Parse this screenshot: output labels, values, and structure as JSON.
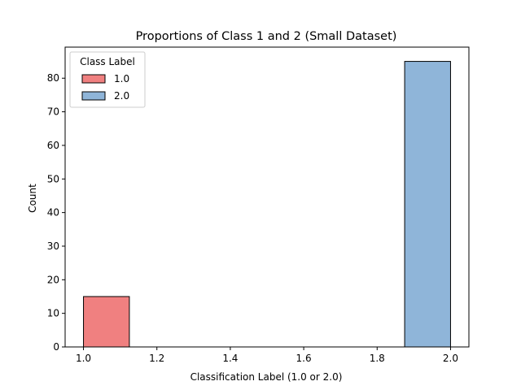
{
  "chart_data": {
    "type": "bar",
    "title": "Proportions of Class 1 and 2 (Small Dataset)",
    "xlabel": "Classification Label (1.0 or 2.0)",
    "ylabel": "Count",
    "xlim": [
      0.95,
      2.05
    ],
    "ylim": [
      0,
      89.25
    ],
    "xticks": [
      1.0,
      1.2,
      1.4,
      1.6,
      1.8,
      2.0
    ],
    "xtick_labels": [
      "1.0",
      "1.2",
      "1.4",
      "1.6",
      "1.8",
      "2.0"
    ],
    "yticks": [
      0,
      10,
      20,
      30,
      40,
      50,
      60,
      70,
      80
    ],
    "ytick_labels": [
      "0",
      "10",
      "20",
      "30",
      "40",
      "50",
      "60",
      "70",
      "80"
    ],
    "grid": false,
    "legend": {
      "title": "Class Label",
      "position": "top-left"
    },
    "series": [
      {
        "name": "1.0",
        "color": "#f08080",
        "bins": [
          {
            "x0": 1.0,
            "x1": 1.125,
            "count": 15
          }
        ]
      },
      {
        "name": "2.0",
        "color": "#8fb5d9",
        "bins": [
          {
            "x0": 1.875,
            "x1": 2.0,
            "count": 85
          }
        ]
      }
    ]
  }
}
